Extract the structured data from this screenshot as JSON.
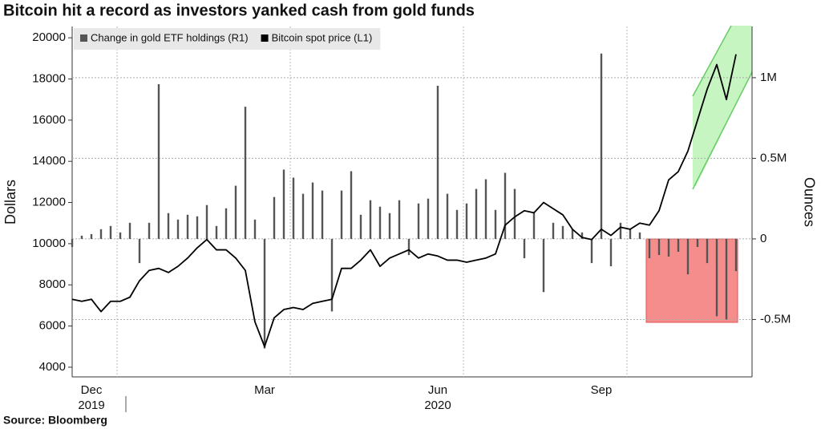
{
  "chart_data": {
    "type": "combo",
    "title": "Bitcoin hit a record as investors yanked cash from gold funds",
    "source": "Source: Bloomberg",
    "ylabel": "Dollars",
    "y2label": "Ounces",
    "categories": [
      null,
      null,
      "Dec",
      null,
      null,
      null,
      null,
      null,
      null,
      null,
      null,
      null,
      null,
      null,
      null,
      null,
      null,
      null,
      null,
      null,
      "Mar",
      null,
      null,
      null,
      null,
      null,
      null,
      null,
      null,
      null,
      null,
      null,
      null,
      null,
      null,
      null,
      null,
      null,
      "Jun",
      null,
      null,
      null,
      null,
      null,
      null,
      null,
      null,
      null,
      null,
      null,
      null,
      null,
      null,
      null,
      null,
      "Sep",
      null,
      null,
      null,
      null,
      null,
      null,
      null,
      null,
      null,
      null,
      null,
      null,
      null,
      null
    ],
    "years": [
      "2019",
      "2020"
    ],
    "ylim": [
      3530,
      20550
    ],
    "yticks": [
      4000,
      6000,
      8000,
      10000,
      12000,
      14000,
      16000,
      18000,
      20000
    ],
    "y2lim": [
      -856000,
      1318000
    ],
    "y2ticks": [
      {
        "value": -500000,
        "label": "-0.5M"
      },
      0,
      {
        "value": 500000,
        "label": "0.5M"
      },
      {
        "value": 1000000,
        "label": "1M"
      }
    ],
    "grid": "y2",
    "legend": "top-left",
    "series": [
      {
        "name": "Change in gold ETF holdings (R1)",
        "type": "bar",
        "axis": "y2",
        "color": "#555555",
        "values": [
          -50000,
          20000,
          30000,
          60000,
          80000,
          40000,
          100000,
          -150000,
          100000,
          960000,
          160000,
          120000,
          150000,
          140000,
          210000,
          80000,
          190000,
          330000,
          820000,
          120000,
          -680000,
          260000,
          430000,
          380000,
          280000,
          350000,
          300000,
          -450000,
          300000,
          420000,
          150000,
          240000,
          200000,
          160000,
          240000,
          -100000,
          220000,
          250000,
          950000,
          280000,
          180000,
          220000,
          310000,
          370000,
          180000,
          410000,
          310000,
          -120000,
          160000,
          -330000,
          100000,
          80000,
          60000,
          40000,
          -150000,
          1150000,
          -170000,
          100000,
          60000,
          40000,
          -120000,
          -100000,
          -110000,
          -80000,
          -220000,
          -50000,
          -150000,
          -480000,
          -500000,
          -200000
        ]
      },
      {
        "name": "Bitcoin spot price (L1)",
        "type": "line",
        "color": "#000000",
        "values": [
          7300,
          7200,
          7300,
          6700,
          7200,
          7200,
          7400,
          8200,
          8700,
          8800,
          8600,
          8900,
          9300,
          9800,
          10200,
          9700,
          9700,
          9300,
          8700,
          6200,
          5000,
          6400,
          6800,
          6900,
          6800,
          7100,
          7200,
          7300,
          8800,
          8800,
          9200,
          9700,
          8900,
          9300,
          9500,
          9700,
          9300,
          9500,
          9400,
          9200,
          9200,
          9100,
          9200,
          9300,
          9500,
          10900,
          11300,
          11600,
          11500,
          12000,
          11700,
          11400,
          10700,
          10300,
          10200,
          10700,
          10400,
          10800,
          10700,
          11000,
          10900,
          11600,
          13100,
          13500,
          14500,
          16000,
          17500,
          18700,
          17000,
          19200
        ]
      }
    ]
  }
}
